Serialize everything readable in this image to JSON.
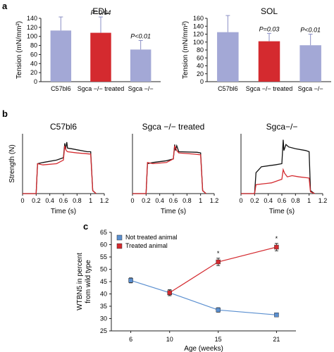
{
  "panels": {
    "a": "a",
    "b": "b",
    "c": "c"
  },
  "chart_data": [
    {
      "type": "bar",
      "panel": "a",
      "title": "EDL",
      "ylabel": "Tension (mN/mm²)",
      "categories": [
        "C57bl6",
        "Sgca −/− treated",
        "Sgca −/−"
      ],
      "values": [
        113,
        108,
        71
      ],
      "errors": [
        30,
        35,
        20
      ],
      "annotations": [
        "",
        "P=0.04",
        "P<0.01"
      ],
      "colors": [
        "#a3a8d6",
        "#d42a2f",
        "#a3a8d6"
      ],
      "ylim": [
        0,
        140
      ],
      "yticks": [
        0,
        20,
        40,
        60,
        80,
        100,
        120,
        140
      ]
    },
    {
      "type": "bar",
      "panel": "a",
      "title": "SOL",
      "ylabel": "Tension (mN/mm²)",
      "categories": [
        "C57bl6",
        "Sgca −/− treated",
        "Sgca −/−"
      ],
      "values": [
        125,
        102,
        92
      ],
      "errors": [
        42,
        20,
        28
      ],
      "annotations": [
        "",
        "P=0.03",
        "P<0.01"
      ],
      "colors": [
        "#a3a8d6",
        "#d42a2f",
        "#a3a8d6"
      ],
      "ylim": [
        0,
        160
      ],
      "yticks": [
        0,
        20,
        40,
        60,
        80,
        100,
        120,
        140,
        160
      ]
    },
    {
      "type": "line",
      "panel": "b",
      "title": "C57bl6",
      "xlabel": "Time (s)",
      "ylabel": "Strength (N)",
      "xticks": [
        0,
        0.2,
        0.4,
        0.6,
        0.8,
        1,
        1.2
      ],
      "xlim": [
        0,
        1.2
      ],
      "series": [
        {
          "color": "#111111",
          "points": [
            [
              0,
              0
            ],
            [
              0.2,
              0
            ],
            [
              0.22,
              0.5
            ],
            [
              0.3,
              0.52
            ],
            [
              0.5,
              0.56
            ],
            [
              0.6,
              0.6
            ],
            [
              0.62,
              0.84
            ],
            [
              0.63,
              0.74
            ],
            [
              0.65,
              0.86
            ],
            [
              0.66,
              0.76
            ],
            [
              0.72,
              0.75
            ],
            [
              0.95,
              0.7
            ],
            [
              1.0,
              0.7
            ],
            [
              1.03,
              0.05
            ],
            [
              1.08,
              0
            ]
          ]
        },
        {
          "color": "#d42a2f",
          "points": [
            [
              0,
              0
            ],
            [
              0.2,
              0
            ],
            [
              0.22,
              0.5
            ],
            [
              0.3,
              0.48
            ],
            [
              0.5,
              0.5
            ],
            [
              0.6,
              0.56
            ],
            [
              0.62,
              0.8
            ],
            [
              0.64,
              0.72
            ],
            [
              0.66,
              0.7
            ],
            [
              0.8,
              0.68
            ],
            [
              1.0,
              0.66
            ],
            [
              1.03,
              0.05
            ],
            [
              1.08,
              0
            ]
          ]
        }
      ]
    },
    {
      "type": "line",
      "panel": "b",
      "title": "Sgca −/− treated",
      "xlabel": "Time (s)",
      "xticks": [
        0,
        0.2,
        0.4,
        0.6,
        0.8,
        1,
        1.2
      ],
      "xlim": [
        0,
        1.2
      ],
      "series": [
        {
          "color": "#111111",
          "points": [
            [
              0,
              0
            ],
            [
              0.2,
              0
            ],
            [
              0.22,
              0.5
            ],
            [
              0.3,
              0.52
            ],
            [
              0.5,
              0.55
            ],
            [
              0.6,
              0.58
            ],
            [
              0.62,
              0.82
            ],
            [
              0.63,
              0.72
            ],
            [
              0.65,
              0.8
            ],
            [
              0.68,
              0.7
            ],
            [
              0.95,
              0.69
            ],
            [
              1.0,
              0.68
            ],
            [
              1.03,
              0.05
            ],
            [
              1.08,
              0
            ]
          ]
        },
        {
          "color": "#d42a2f",
          "points": [
            [
              0,
              0
            ],
            [
              0.2,
              0
            ],
            [
              0.22,
              0.52
            ],
            [
              0.3,
              0.5
            ],
            [
              0.5,
              0.52
            ],
            [
              0.6,
              0.58
            ],
            [
              0.62,
              0.8
            ],
            [
              0.65,
              0.72
            ],
            [
              0.68,
              0.68
            ],
            [
              0.9,
              0.66
            ],
            [
              1.0,
              0.65
            ],
            [
              1.03,
              0.05
            ],
            [
              1.08,
              0
            ]
          ]
        }
      ]
    },
    {
      "type": "line",
      "panel": "b",
      "title": "Sgca−/−",
      "xlabel": "Time (s)",
      "xticks": [
        0,
        0.2,
        0.4,
        0.6,
        0.8,
        1,
        1.2
      ],
      "xlim": [
        0,
        1.2
      ],
      "series": [
        {
          "color": "#111111",
          "points": [
            [
              0,
              0
            ],
            [
              0.2,
              0
            ],
            [
              0.22,
              0.35
            ],
            [
              0.3,
              0.45
            ],
            [
              0.5,
              0.48
            ],
            [
              0.6,
              0.5
            ],
            [
              0.62,
              0.9
            ],
            [
              0.63,
              0.72
            ],
            [
              0.66,
              0.82
            ],
            [
              0.7,
              0.78
            ],
            [
              0.8,
              0.75
            ],
            [
              0.95,
              0.72
            ],
            [
              1.0,
              0.7
            ],
            [
              1.02,
              0.05
            ],
            [
              1.08,
              0
            ]
          ]
        },
        {
          "color": "#d42a2f",
          "points": [
            [
              0,
              0
            ],
            [
              0.2,
              0
            ],
            [
              0.22,
              0.15
            ],
            [
              0.3,
              0.16
            ],
            [
              0.45,
              0.18
            ],
            [
              0.55,
              0.22
            ],
            [
              0.6,
              0.24
            ],
            [
              0.62,
              0.4
            ],
            [
              0.64,
              0.34
            ],
            [
              0.68,
              0.28
            ],
            [
              0.75,
              0.3
            ],
            [
              0.85,
              0.28
            ],
            [
              1.0,
              0.26
            ],
            [
              1.02,
              0.03
            ],
            [
              1.08,
              0
            ]
          ]
        }
      ]
    },
    {
      "type": "line",
      "panel": "c",
      "xlabel": "Age (weeks)",
      "ylabel": "WTBN5 in percent from wild type",
      "x": [
        6,
        10,
        15,
        21
      ],
      "xticks": [
        6,
        10,
        15,
        21
      ],
      "ylim": [
        25,
        65
      ],
      "yticks": [
        25,
        30,
        35,
        40,
        45,
        50,
        55,
        60,
        65
      ],
      "series": [
        {
          "name": "Not treated animal",
          "color": "#5a8fd0",
          "x": [
            6,
            10,
            15,
            21
          ],
          "values": [
            45.5,
            40.5,
            33.5,
            31.5
          ],
          "errors": [
            1.0,
            1.2,
            0.9,
            0.6
          ]
        },
        {
          "name": "Treated animal",
          "color": "#d42a2f",
          "x": [
            10,
            15,
            21
          ],
          "values": [
            40.5,
            53.0,
            59.0
          ],
          "errors": [
            1.2,
            1.5,
            1.5
          ]
        }
      ],
      "annotations": [
        {
          "x": 15,
          "text": "*"
        },
        {
          "x": 21,
          "text": "*"
        }
      ]
    }
  ]
}
